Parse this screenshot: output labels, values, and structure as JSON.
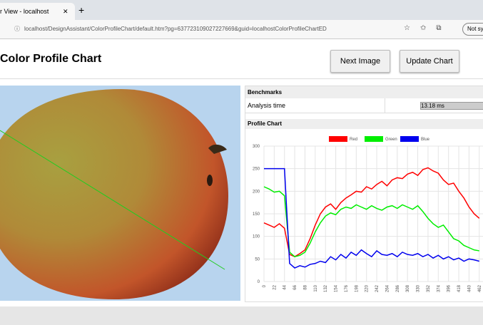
{
  "browser": {
    "tab_title": "r View - localhost",
    "url": "localhost/DesignAssistant/ColorProfileChart/default.htm?pg=637723109027227669&guid=localhostColorProfileChartED",
    "profile_button": "Not sy"
  },
  "header": {
    "title": "Color Profile Chart",
    "buttons": [
      "Next Image",
      "Update Chart"
    ]
  },
  "benchmarks": {
    "title": "Benchmarks",
    "label": "Analysis time",
    "value": "13.18 ms"
  },
  "chart_data": {
    "type": "line",
    "title": "Profile Chart",
    "x": [
      0,
      11,
      22,
      33,
      44,
      55,
      66,
      77,
      88,
      99,
      110,
      121,
      132,
      143,
      154,
      165,
      176,
      187,
      198,
      209,
      220,
      231,
      242,
      253,
      264,
      275,
      286,
      297,
      308,
      319,
      330,
      341,
      352,
      363,
      374,
      385,
      396,
      407,
      418,
      429,
      440,
      451,
      462
    ],
    "series": [
      {
        "name": "Red",
        "color": "#ff0000",
        "values": [
          130,
          125,
          120,
          128,
          118,
          60,
          55,
          62,
          70,
          95,
          125,
          150,
          165,
          172,
          160,
          175,
          185,
          192,
          200,
          198,
          210,
          205,
          215,
          222,
          212,
          225,
          230,
          228,
          238,
          242,
          235,
          248,
          252,
          245,
          240,
          225,
          215,
          218,
          200,
          185,
          165,
          150,
          140
        ]
      },
      {
        "name": "Green",
        "color": "#00ee00",
        "values": [
          210,
          205,
          198,
          200,
          190,
          65,
          55,
          58,
          65,
          85,
          110,
          130,
          145,
          152,
          148,
          160,
          165,
          162,
          170,
          165,
          160,
          168,
          162,
          158,
          165,
          168,
          162,
          170,
          165,
          160,
          168,
          155,
          140,
          128,
          120,
          125,
          110,
          95,
          90,
          80,
          75,
          70,
          68
        ]
      },
      {
        "name": "Blue",
        "color": "#0000ee",
        "values": [
          250,
          250,
          250,
          250,
          250,
          40,
          30,
          35,
          32,
          38,
          40,
          45,
          42,
          55,
          48,
          60,
          52,
          65,
          58,
          70,
          62,
          55,
          68,
          60,
          58,
          62,
          55,
          65,
          60,
          58,
          62,
          55,
          60,
          52,
          58,
          50,
          55,
          48,
          52,
          45,
          50,
          48,
          45
        ]
      }
    ],
    "xlim": [
      0,
      470
    ],
    "ylim": [
      0,
      300
    ],
    "xticks": [
      0,
      22,
      44,
      66,
      88,
      110,
      132,
      154,
      176,
      198,
      220,
      242,
      264,
      286,
      308,
      330,
      352,
      374,
      396,
      418,
      440,
      462
    ],
    "yticks": [
      0,
      50,
      100,
      150,
      200,
      250,
      300
    ],
    "grid": true
  }
}
